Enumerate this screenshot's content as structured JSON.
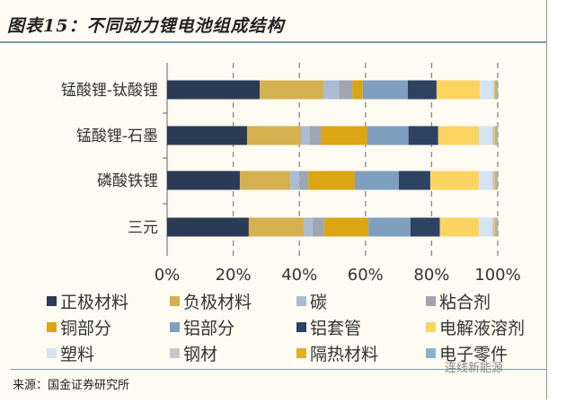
{
  "title": "图表15：不同动力锂电池组成结构",
  "source": "来源：国金证券研究所",
  "watermark": "连线新能源",
  "chart_data": {
    "type": "bar",
    "orientation": "horizontal-stacked-100",
    "title": "不同动力锂电池组成结构",
    "categories": [
      "锰酸锂-钛酸锂",
      "锰酸锂-石墨",
      "磷酸铁锂",
      "三元"
    ],
    "xlim": [
      0,
      100
    ],
    "xticks": [
      "0%",
      "20%",
      "40%",
      "60%",
      "80%",
      "100%"
    ],
    "grid": "vertical dashed",
    "legend_position": "bottom",
    "series": [
      {
        "name": "正极材料",
        "color": "#2b3a55",
        "values": [
          28.0,
          24.2,
          22.0,
          24.7
        ]
      },
      {
        "name": "负极材料",
        "color": "#d4b04e",
        "values": [
          19.3,
          16.3,
          15.2,
          16.6
        ]
      },
      {
        "name": "碳",
        "color": "#a9bcd6",
        "values": [
          4.7,
          2.7,
          2.8,
          2.7
        ]
      },
      {
        "name": "粘合剂",
        "color": "#9fa6b0",
        "values": [
          4.0,
          3.4,
          2.7,
          3.5
        ]
      },
      {
        "name": "铜部分",
        "color": "#dba514",
        "values": [
          3.2,
          14.0,
          14.1,
          13.4
        ]
      },
      {
        "name": "铝部分",
        "color": "#7f9fbf",
        "values": [
          13.6,
          12.4,
          13.3,
          12.7
        ]
      },
      {
        "name": "铝套管",
        "color": "#2e4262",
        "values": [
          8.7,
          9.0,
          9.5,
          8.9
        ]
      },
      {
        "name": "电解液溶剂",
        "color": "#fcd462",
        "values": [
          13.1,
          12.3,
          14.7,
          11.8
        ]
      },
      {
        "name": "塑料",
        "color": "#d4e4f2",
        "values": [
          4.1,
          4.1,
          4.1,
          4.1
        ]
      },
      {
        "name": "钢材",
        "color": "#c8c8c8",
        "values": [
          0.5,
          0.8,
          0.8,
          0.8
        ]
      },
      {
        "name": "隔热材料",
        "color": "#e0b020",
        "values": [
          0.5,
          0.5,
          0.5,
          0.5
        ]
      },
      {
        "name": "电子零件",
        "color": "#8ab0d0",
        "values": [
          0.3,
          0.3,
          0.3,
          0.3
        ]
      }
    ]
  }
}
